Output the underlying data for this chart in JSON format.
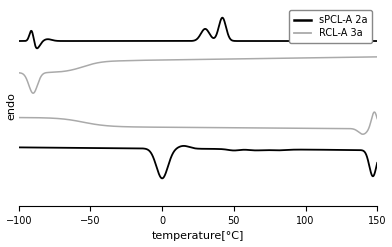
{
  "title": "",
  "xlabel": "temperature[°C]",
  "ylabel": "endo",
  "xlim": [
    -100,
    150
  ],
  "xticks": [
    -100,
    -50,
    0,
    50,
    100,
    150
  ],
  "legend_labels": [
    "sPCL-A 2a",
    "RCL-A 3a"
  ],
  "black_color": "#000000",
  "gray_color": "#aaaaaa",
  "background": "#ffffff"
}
